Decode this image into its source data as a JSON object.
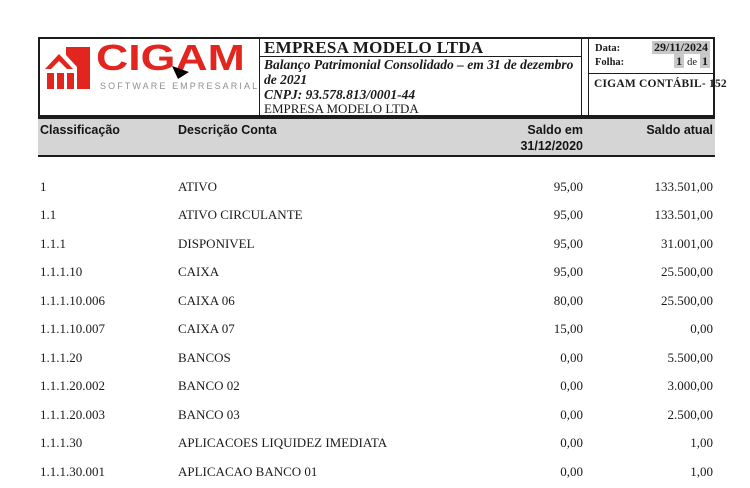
{
  "report": {
    "logo": {
      "brand": "CIGAM",
      "tagline": "SOFTWARE EMPRESARIAL"
    },
    "company_block": {
      "title": "EMPRESA MODELO LTDA",
      "subtitle_line1": "Balanço Patrimonial Consolidado – em 31 de dezembro",
      "subtitle_line2": "de 2021",
      "cnpj": "CNPJ: 93.578.813/0001-44",
      "company_name": "EMPRESA MODELO LTDA"
    },
    "meta": {
      "date_label": "Data:",
      "date_value": "29/11/2024",
      "sheet_label": "Folha:",
      "sheet_page": "1",
      "sheet_sep": "de",
      "sheet_total": "1",
      "module": "CIGAM CONTÁBIL- 152"
    }
  },
  "table": {
    "headers": {
      "classification": "Classificação",
      "description": "Descrição Conta",
      "balance_prev_line1": "Saldo em",
      "balance_prev_line2": "31/12/2020",
      "balance_current": "Saldo atual"
    },
    "rows": [
      {
        "classification": "1",
        "description": "ATIVO",
        "balance_prev": "95,00",
        "balance_current": "133.501,00"
      },
      {
        "classification": "1.1",
        "description": "ATIVO CIRCULANTE",
        "balance_prev": "95,00",
        "balance_current": "133.501,00"
      },
      {
        "classification": "1.1.1",
        "description": "DISPONIVEL",
        "balance_prev": "95,00",
        "balance_current": "31.001,00"
      },
      {
        "classification": "1.1.1.10",
        "description": "CAIXA",
        "balance_prev": "95,00",
        "balance_current": "25.500,00"
      },
      {
        "classification": "1.1.1.10.006",
        "description": "CAIXA 06",
        "balance_prev": "80,00",
        "balance_current": "25.500,00"
      },
      {
        "classification": "1.1.1.10.007",
        "description": "CAIXA 07",
        "balance_prev": "15,00",
        "balance_current": "0,00"
      },
      {
        "classification": "1.1.1.20",
        "description": "BANCOS",
        "balance_prev": "0,00",
        "balance_current": "5.500,00"
      },
      {
        "classification": "1.1.1.20.002",
        "description": "BANCO 02",
        "balance_prev": "0,00",
        "balance_current": "3.000,00"
      },
      {
        "classification": "1.1.1.20.003",
        "description": "BANCO 03",
        "balance_prev": "0,00",
        "balance_current": "2.500,00"
      },
      {
        "classification": "1.1.1.30",
        "description": "APLICACOES LIQUIDEZ IMEDIATA",
        "balance_prev": "0,00",
        "balance_current": "1,00"
      },
      {
        "classification": "1.1.1.30.001",
        "description": "APLICACAO BANCO 01",
        "balance_prev": "0,00",
        "balance_current": "1,00"
      }
    ]
  },
  "colors": {
    "brand_red": "#e2251f",
    "tagline_gray": "#8f8f8f",
    "band_bg": "#d5d5d5",
    "highlight_bg": "#c8c8c8",
    "border": "#1c1c1c"
  }
}
